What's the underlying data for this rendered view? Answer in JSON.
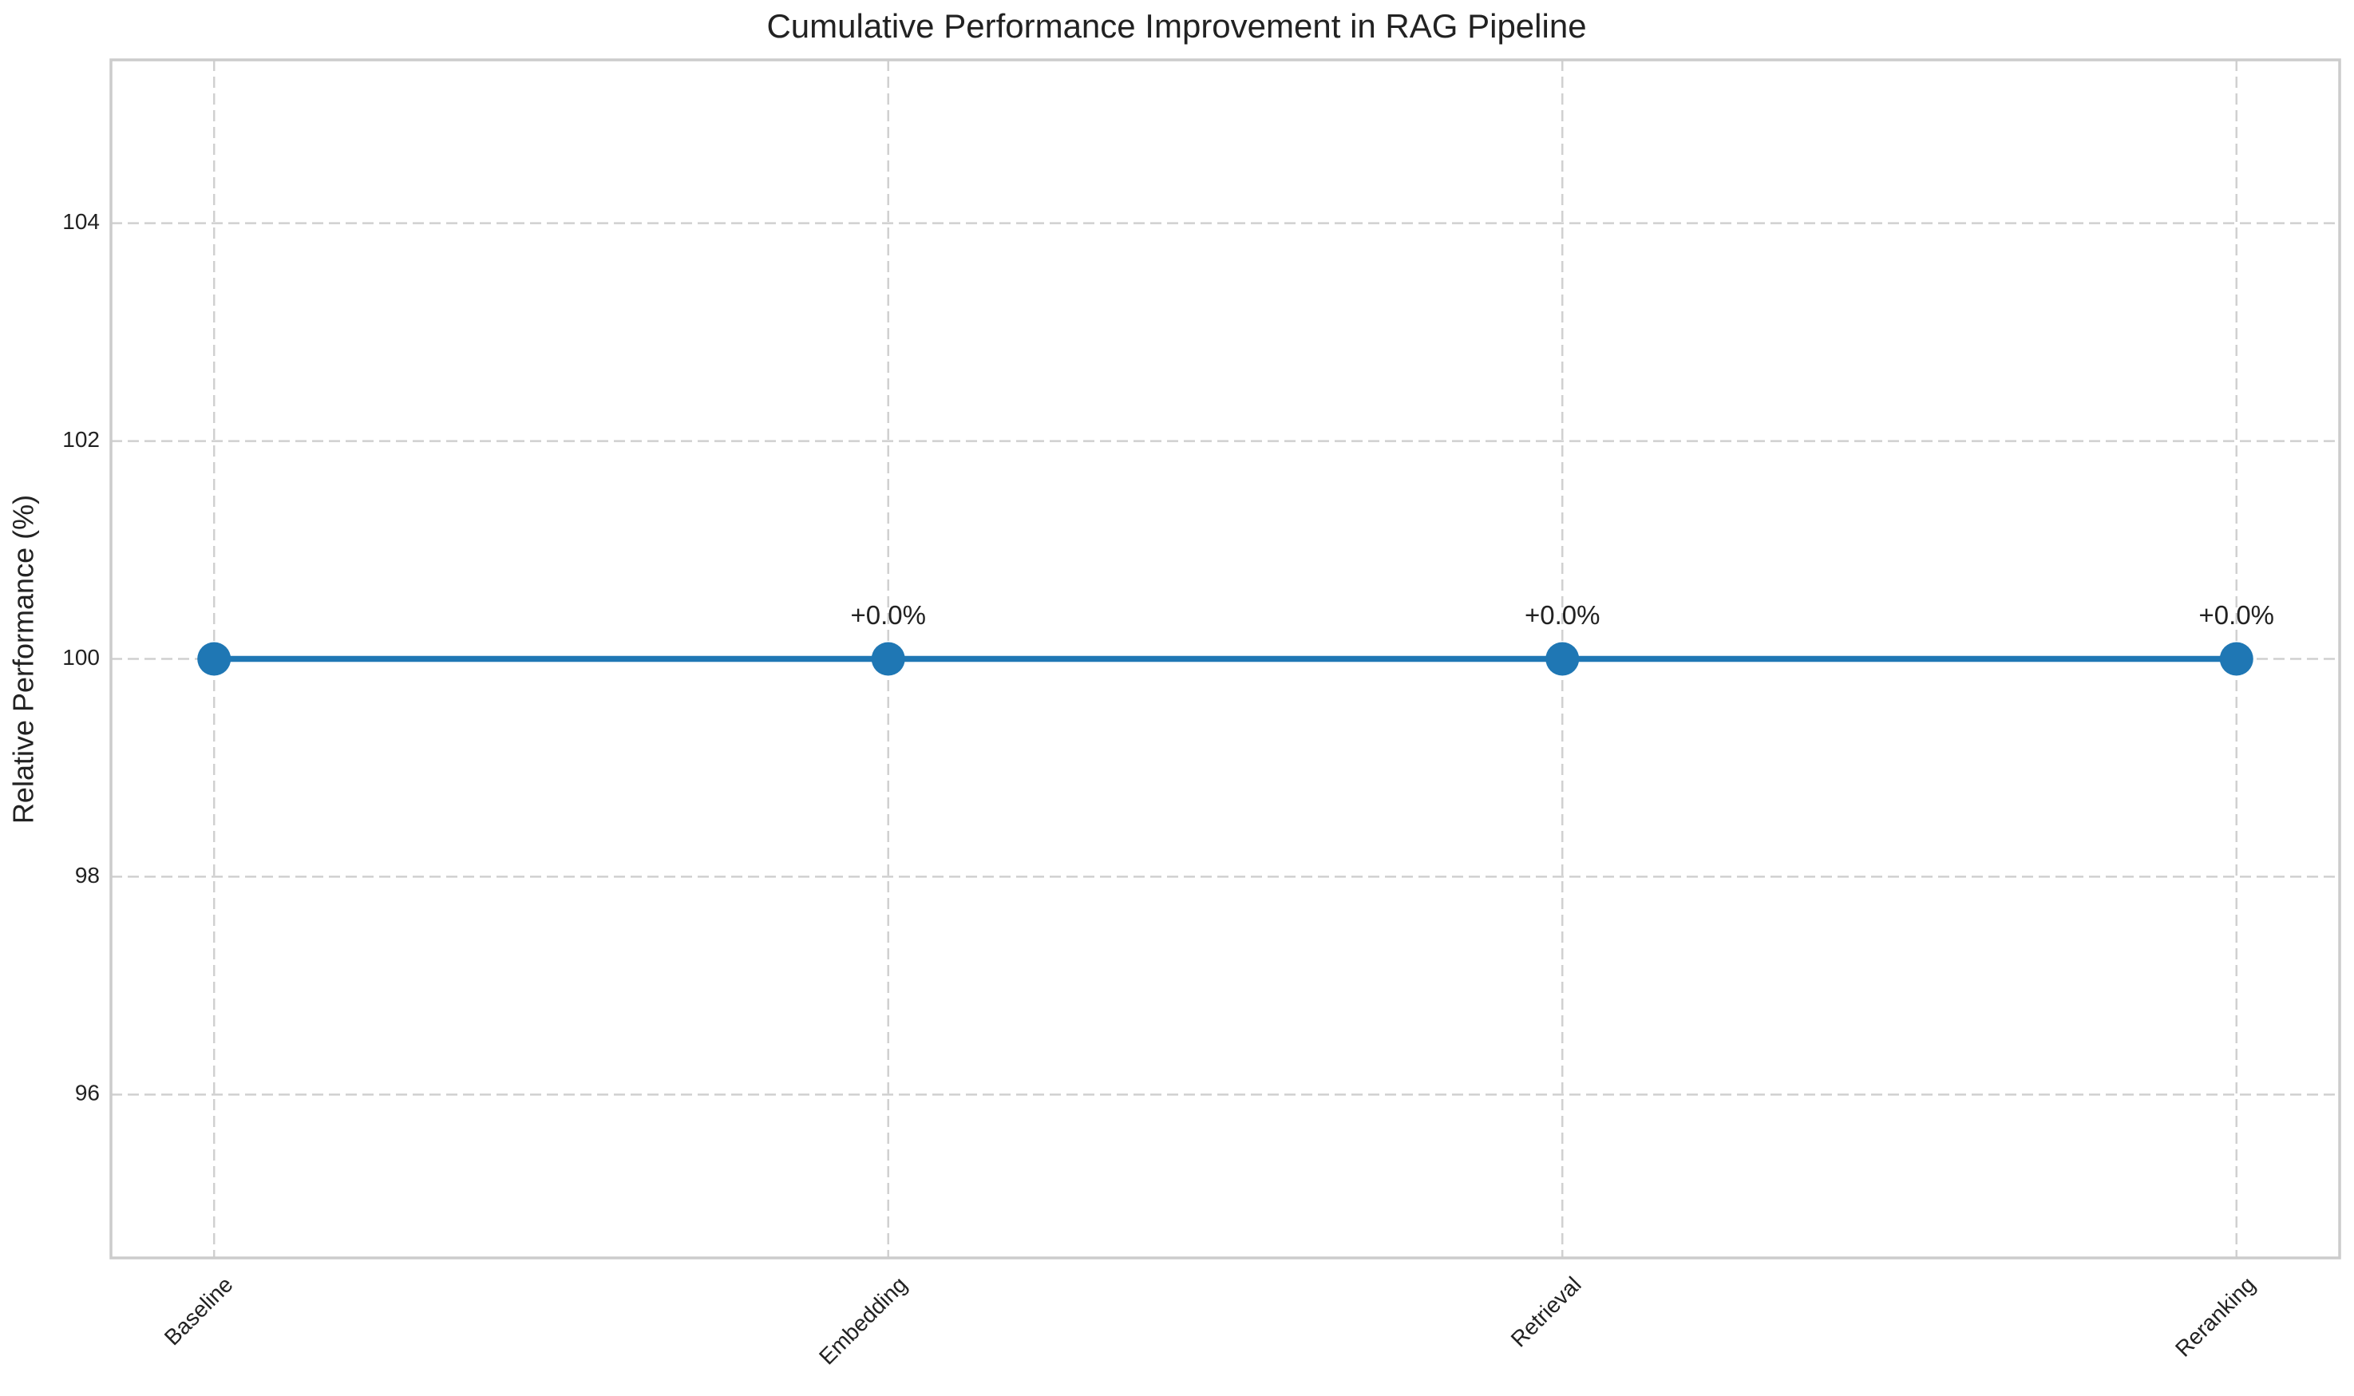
{
  "chart_data": {
    "type": "line",
    "title": "Cumulative Performance Improvement in RAG Pipeline",
    "y_label": "Relative Performance (%)",
    "categories": [
      "Baseline",
      "Embedding",
      "Retrieval",
      "Reranking"
    ],
    "series": [
      {
        "name": "Relative Performance",
        "color": "#1f77b4",
        "values": [
          100,
          100,
          100,
          100
        ]
      }
    ],
    "annotations": [
      {
        "x": "Embedding",
        "text": "+0.0%"
      },
      {
        "x": "Retrieval",
        "text": "+0.0%"
      },
      {
        "x": "Reranking",
        "text": "+0.0%"
      }
    ],
    "ylim": [
      94.5,
      105.5
    ],
    "yticks": [
      96,
      98,
      100,
      102,
      104
    ],
    "grid": true
  }
}
